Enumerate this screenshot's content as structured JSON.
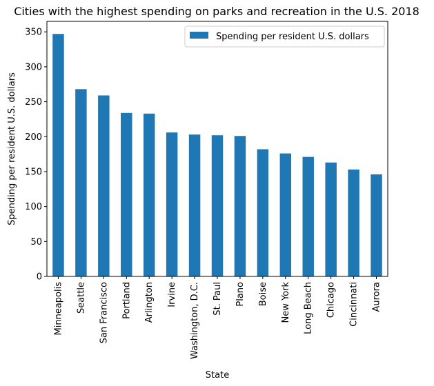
{
  "chart_data": {
    "type": "bar",
    "title": "Cities with the highest spending on parks and recreation in the U.S. 2018",
    "xlabel": "State",
    "ylabel": "Spending per resident U.S. dollars",
    "categories": [
      "Minneapolis",
      "Seattle",
      "San Francisco",
      "Portland",
      "Arlington",
      "Irvine",
      "Washington, D.C.",
      "St. Paul",
      "Plano",
      "Boise",
      "New York",
      "Long Beach",
      "Chicago",
      "Cincinnati",
      "Aurora"
    ],
    "series": [
      {
        "name": "Spending per resident U.S. dollars",
        "values": [
          347,
          268,
          259,
          234,
          233,
          206,
          203,
          202,
          201,
          182,
          176,
          171,
          163,
          153,
          146
        ],
        "color": "#1f77b4"
      }
    ],
    "ylim": [
      0,
      365
    ],
    "yticks": [
      0,
      50,
      100,
      150,
      200,
      250,
      300,
      350
    ],
    "grid": false,
    "legend_position": "top-right"
  }
}
